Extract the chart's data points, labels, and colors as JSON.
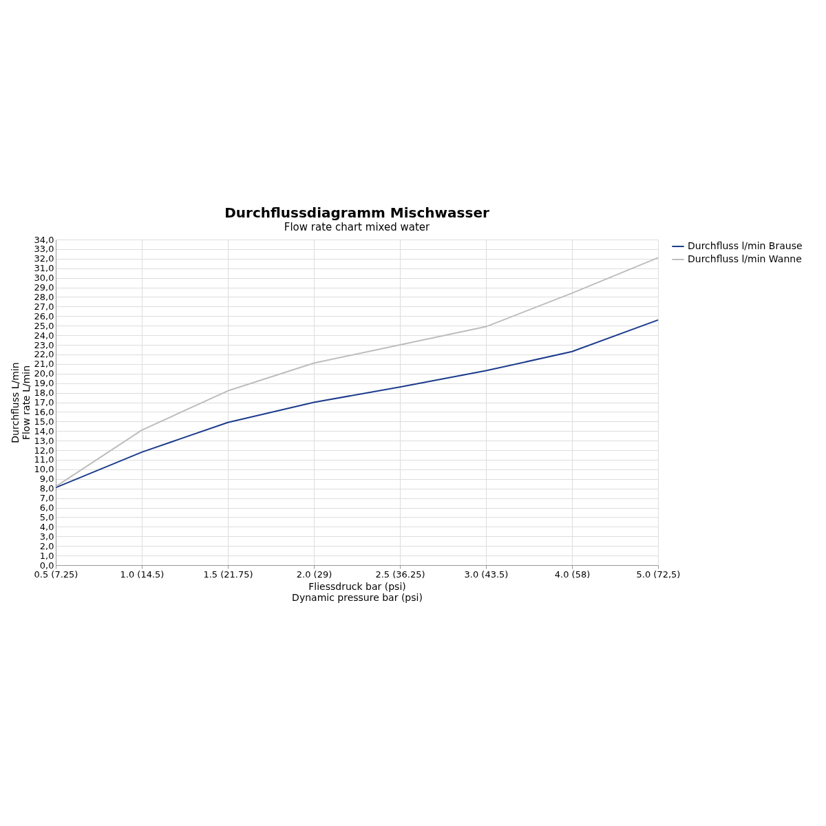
{
  "chart_data": {
    "type": "line",
    "title": "Durchflussdiagramm Mischwasser",
    "subtitle": "Flow rate chart mixed water",
    "xlabel": "Fliessdruck bar (psi)\nDynamic pressure bar (psi)",
    "ylabel": "Durchfluss L/min\nFlow rate L/min",
    "categories": [
      "0.5 (7.25)",
      "1.0 (14.5)",
      "1.5 (21.75)",
      "2.0 (29)",
      "2.5 (36.25)",
      "3.0 (43.5)",
      "4.0 (58)",
      "5.0 (72,5)"
    ],
    "series": [
      {
        "name": "Durchfluss l/min Brause",
        "color": "#1a3a8c",
        "values": [
          8.1,
          11.8,
          14.9,
          17.0,
          18.6,
          20.3,
          22.3,
          25.6
        ]
      },
      {
        "name": "Durchfluss l/min Wanne",
        "color": "#bdbdbd",
        "values": [
          8.2,
          14.1,
          18.2,
          21.1,
          23.0,
          24.9,
          28.4,
          32.1
        ]
      }
    ],
    "ylim": [
      0,
      34
    ],
    "yticks": [
      {
        "value": 0,
        "label": "0,0"
      },
      {
        "value": 1,
        "label": "1,0"
      },
      {
        "value": 2,
        "label": "2,0"
      },
      {
        "value": 3,
        "label": "3,0"
      },
      {
        "value": 4,
        "label": "4,0"
      },
      {
        "value": 5,
        "label": "5,0"
      },
      {
        "value": 6,
        "label": "6,0"
      },
      {
        "value": 7,
        "label": "7,0"
      },
      {
        "value": 8,
        "label": "8,0"
      },
      {
        "value": 9,
        "label": "9,0"
      },
      {
        "value": 10,
        "label": "10,0"
      },
      {
        "value": 11,
        "label": "11,0"
      },
      {
        "value": 12,
        "label": "12,0"
      },
      {
        "value": 13,
        "label": "13,0"
      },
      {
        "value": 14,
        "label": "14,0"
      },
      {
        "value": 15,
        "label": "15,0"
      },
      {
        "value": 16,
        "label": "16,0"
      },
      {
        "value": 17,
        "label": "17,0"
      },
      {
        "value": 18,
        "label": "18,0"
      },
      {
        "value": 19,
        "label": "19,0"
      },
      {
        "value": 20,
        "label": "20,0"
      },
      {
        "value": 21,
        "label": "21,0"
      },
      {
        "value": 22,
        "label": "22,0"
      },
      {
        "value": 23,
        "label": "23,0"
      },
      {
        "value": 24,
        "label": "24,0"
      },
      {
        "value": 25,
        "label": "25,0"
      },
      {
        "value": 26,
        "label": "26,0"
      },
      {
        "value": 27,
        "label": "27,0"
      },
      {
        "value": 28,
        "label": "28,0"
      },
      {
        "value": 29,
        "label": "29,0"
      },
      {
        "value": 30,
        "label": "30,0"
      },
      {
        "value": 31,
        "label": "31,0"
      },
      {
        "value": 32,
        "label": "32,0"
      },
      {
        "value": 33,
        "label": "33,0"
      },
      {
        "value": 34,
        "label": "34,0"
      }
    ],
    "grid": true,
    "legend": "right",
    "marker": "none",
    "line_style": "solid"
  }
}
